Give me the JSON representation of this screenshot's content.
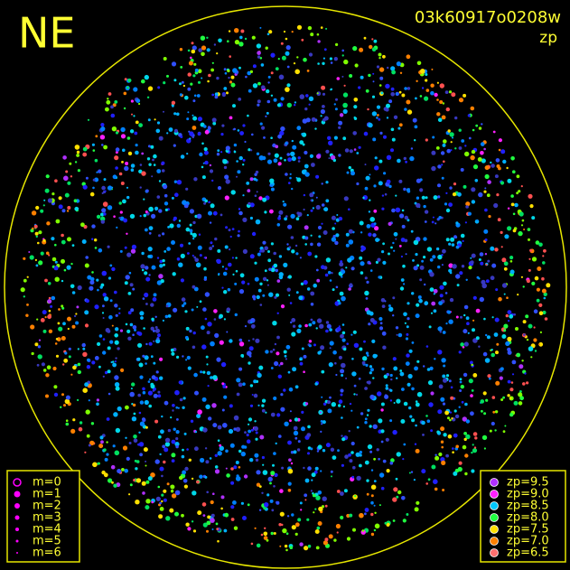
{
  "header": {
    "direction": "NE",
    "frame_id": "03k60917o0208w",
    "quantity": "zp"
  },
  "magnitude_legend": {
    "items": [
      "m=0",
      "m=1",
      "m=2",
      "m=3",
      "m=4",
      "m=5",
      "m=6"
    ],
    "color": "#ff00ff"
  },
  "zp_legend": {
    "items": [
      {
        "label": "zp=9.5",
        "color": "#b030ff"
      },
      {
        "label": "zp=9.0",
        "color": "#ff20ff"
      },
      {
        "label": "zp=8.5",
        "color": "#00c8ff"
      },
      {
        "label": "zp=8.0",
        "color": "#20ff40"
      },
      {
        "label": "zp=7.5",
        "color": "#ffe000"
      },
      {
        "label": "zp=7.0",
        "color": "#ff8000"
      },
      {
        "label": "zp=6.5",
        "color": "#ff7070"
      }
    ]
  },
  "horizon_color": "#e6e600"
}
